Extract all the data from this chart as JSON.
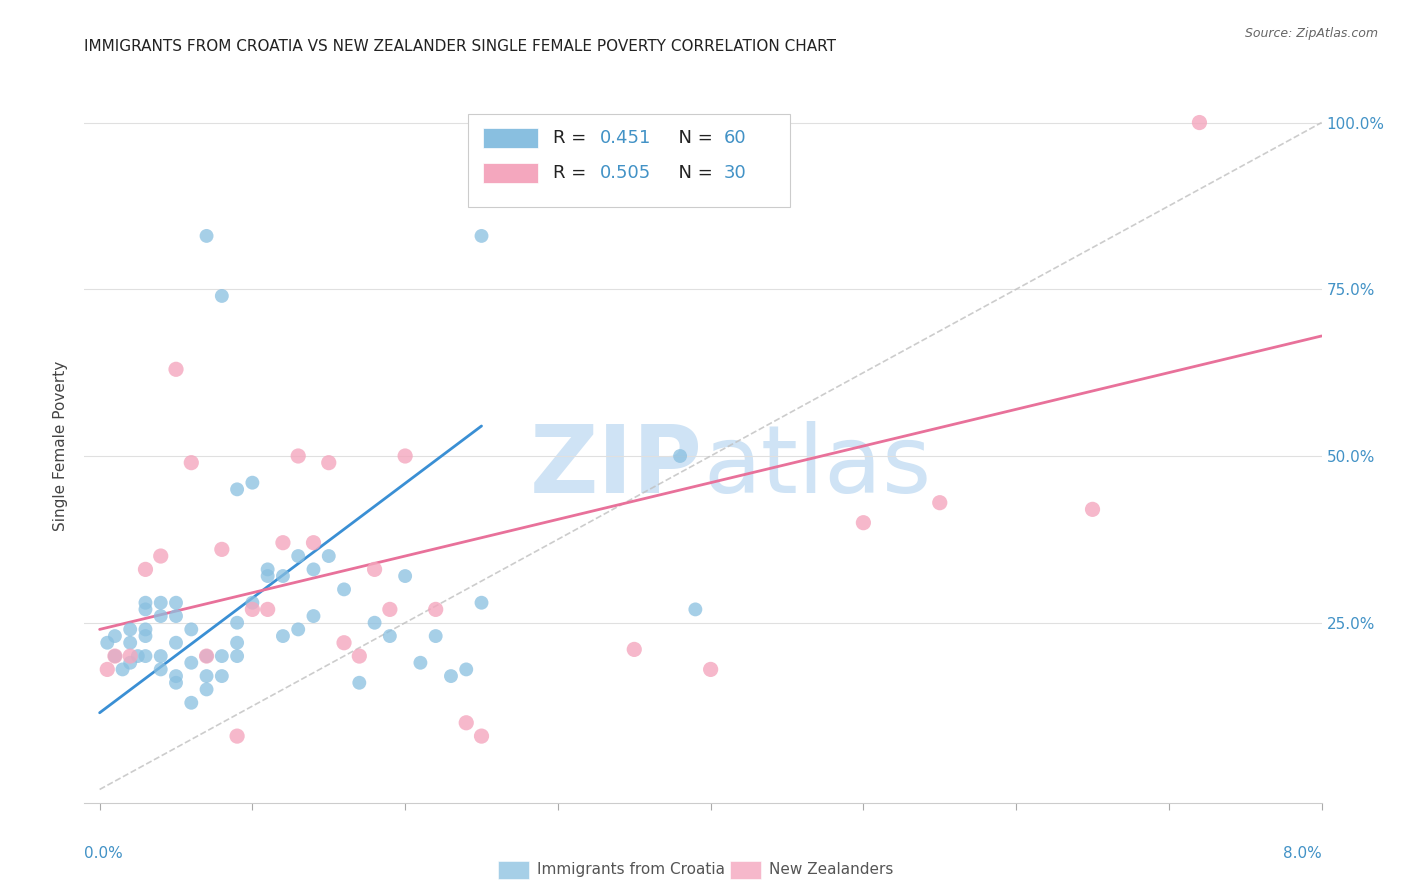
{
  "title": "IMMIGRANTS FROM CROATIA VS NEW ZEALANDER SINGLE FEMALE POVERTY CORRELATION CHART",
  "source": "Source: ZipAtlas.com",
  "ylabel": "Single Female Poverty",
  "ytick_labels": [
    "25.0%",
    "50.0%",
    "75.0%",
    "100.0%"
  ],
  "ytick_values": [
    0.25,
    0.5,
    0.75,
    1.0
  ],
  "blue_color": "#89bfe0",
  "pink_color": "#f4a7be",
  "blue_line_color": "#3a8fd4",
  "pink_line_color": "#e8719a",
  "ref_line_color": "#c0c0c0",
  "watermark_color": "#cfe3f5",
  "blue_scatter_x": [
    0.0005,
    0.001,
    0.001,
    0.0015,
    0.002,
    0.002,
    0.002,
    0.0025,
    0.003,
    0.003,
    0.003,
    0.003,
    0.003,
    0.004,
    0.004,
    0.004,
    0.004,
    0.005,
    0.005,
    0.005,
    0.005,
    0.005,
    0.006,
    0.006,
    0.006,
    0.007,
    0.007,
    0.007,
    0.007,
    0.008,
    0.008,
    0.008,
    0.009,
    0.009,
    0.009,
    0.009,
    0.01,
    0.01,
    0.011,
    0.011,
    0.012,
    0.012,
    0.013,
    0.013,
    0.014,
    0.014,
    0.015,
    0.016,
    0.017,
    0.018,
    0.019,
    0.02,
    0.021,
    0.022,
    0.023,
    0.024,
    0.025,
    0.025,
    0.038,
    0.039
  ],
  "blue_scatter_y": [
    0.22,
    0.2,
    0.23,
    0.18,
    0.19,
    0.22,
    0.24,
    0.2,
    0.2,
    0.23,
    0.24,
    0.27,
    0.28,
    0.18,
    0.2,
    0.26,
    0.28,
    0.16,
    0.17,
    0.22,
    0.26,
    0.28,
    0.13,
    0.19,
    0.24,
    0.15,
    0.17,
    0.2,
    0.83,
    0.17,
    0.2,
    0.74,
    0.2,
    0.22,
    0.25,
    0.45,
    0.28,
    0.46,
    0.32,
    0.33,
    0.23,
    0.32,
    0.24,
    0.35,
    0.26,
    0.33,
    0.35,
    0.3,
    0.16,
    0.25,
    0.23,
    0.32,
    0.19,
    0.23,
    0.17,
    0.18,
    0.28,
    0.83,
    0.5,
    0.27
  ],
  "pink_scatter_x": [
    0.0005,
    0.001,
    0.002,
    0.003,
    0.004,
    0.005,
    0.006,
    0.007,
    0.008,
    0.009,
    0.01,
    0.011,
    0.012,
    0.013,
    0.014,
    0.015,
    0.016,
    0.017,
    0.018,
    0.019,
    0.02,
    0.022,
    0.024,
    0.025,
    0.035,
    0.04,
    0.05,
    0.055,
    0.065,
    0.072
  ],
  "pink_scatter_y": [
    0.18,
    0.2,
    0.2,
    0.33,
    0.35,
    0.63,
    0.49,
    0.2,
    0.36,
    0.08,
    0.27,
    0.27,
    0.37,
    0.5,
    0.37,
    0.49,
    0.22,
    0.2,
    0.33,
    0.27,
    0.5,
    0.27,
    0.1,
    0.08,
    0.21,
    0.18,
    0.4,
    0.43,
    0.42,
    1.0
  ],
  "blue_line_x": [
    0.0,
    0.025
  ],
  "blue_line_y": [
    0.115,
    0.545
  ],
  "pink_line_x": [
    0.0,
    0.08
  ],
  "pink_line_y": [
    0.24,
    0.68
  ],
  "ref_line_x": [
    0.0,
    0.08
  ],
  "ref_line_y": [
    0.0,
    1.0
  ],
  "xlim": [
    -0.001,
    0.08
  ],
  "ylim": [
    -0.02,
    1.05
  ],
  "background_color": "#ffffff",
  "grid_color": "#e0e0e0",
  "bottom_label_blue": "Immigrants from Croatia",
  "bottom_label_pink": "New Zealanders"
}
